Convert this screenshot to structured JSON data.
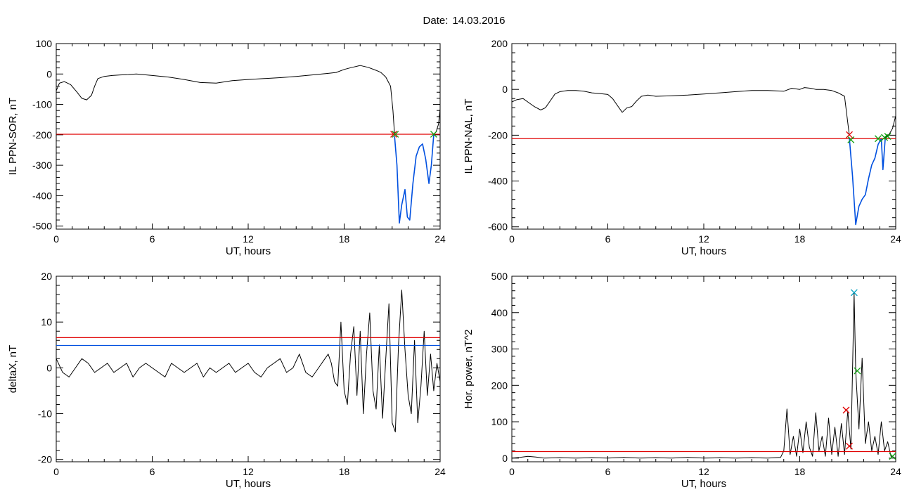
{
  "figure": {
    "date_label": "Date:",
    "date_value": "14.03.2016"
  },
  "colors": {
    "trace": "#000000",
    "red": "#e00000",
    "blue": "#0050e0",
    "green": "#10a010",
    "cyan": "#00a0c0"
  },
  "chart_data": [
    {
      "type": "line",
      "title": "",
      "xlabel": "UT, hours",
      "ylabel": "IL PPN-SOR, nT",
      "xlim": [
        0,
        24
      ],
      "ylim": [
        -510,
        100
      ],
      "xticks": [
        0,
        6,
        12,
        18,
        24
      ],
      "xtick_labels": [
        "0",
        "6",
        "12",
        "18",
        "24"
      ],
      "yticks": [
        100,
        0,
        -100,
        -200,
        -300,
        -400,
        -500
      ],
      "ytick_labels": [
        "100",
        "0",
        "-100",
        "-200",
        "-300",
        "-400",
        "-500"
      ],
      "grid": false,
      "series": [
        {
          "color": "#000000",
          "x": [
            0,
            0.2,
            0.5,
            0.9,
            1.3,
            1.6,
            1.9,
            2.2,
            2.4,
            2.6,
            3,
            3.5,
            4,
            4.5,
            5,
            6,
            7,
            8,
            9,
            10,
            11,
            12,
            13,
            14,
            15,
            16,
            17,
            17.5,
            18,
            18.5,
            19,
            19.5,
            20,
            20.3,
            20.6,
            20.9,
            21.05,
            21.15
          ],
          "y": [
            -55,
            -30,
            -25,
            -35,
            -60,
            -80,
            -85,
            -70,
            -40,
            -15,
            -8,
            -5,
            -3,
            -2,
            0,
            -5,
            -10,
            -18,
            -28,
            -30,
            -22,
            -18,
            -15,
            -12,
            -8,
            -3,
            2,
            5,
            15,
            22,
            28,
            22,
            12,
            5,
            -10,
            -40,
            -120,
            -200
          ]
        },
        {
          "color": "#0050e0",
          "x": [
            21.15,
            21.3,
            21.45,
            21.6,
            21.8,
            21.95,
            22.1,
            22.3,
            22.5,
            22.7,
            22.9,
            23.1,
            23.3,
            23.45,
            23.6
          ],
          "y": [
            -205,
            -300,
            -490,
            -430,
            -380,
            -470,
            -480,
            -360,
            -270,
            -240,
            -230,
            -280,
            -360,
            -300,
            -200
          ]
        },
        {
          "color": "#000000",
          "x": [
            23.6,
            23.75,
            23.9,
            24
          ],
          "y": [
            -200,
            -190,
            -165,
            -115
          ]
        }
      ],
      "thresholds": [
        {
          "color": "#e00000",
          "y": -198
        }
      ],
      "markers": [
        {
          "color": "#e00000",
          "x": 21.1,
          "y": -198
        },
        {
          "color": "#10a010",
          "x": 21.2,
          "y": -198
        },
        {
          "color": "#10a010",
          "x": 23.6,
          "y": -198
        }
      ]
    },
    {
      "type": "line",
      "title": "",
      "xlabel": "UT, hours",
      "ylabel": "IL PPN-NAL, nT",
      "xlim": [
        0,
        24
      ],
      "ylim": [
        -610,
        200
      ],
      "xticks": [
        0,
        6,
        12,
        18,
        24
      ],
      "xtick_labels": [
        "0",
        "6",
        "12",
        "18",
        "24"
      ],
      "yticks": [
        200,
        0,
        -200,
        -400,
        -600
      ],
      "ytick_labels": [
        "200",
        "0",
        "-200",
        "-400",
        "-600"
      ],
      "grid": false,
      "series": [
        {
          "color": "#000000",
          "x": [
            0,
            0.3,
            0.7,
            1.0,
            1.4,
            1.8,
            2.1,
            2.4,
            2.7,
            3.0,
            3.5,
            4.0,
            4.5,
            5.0,
            5.5,
            6.0,
            6.3,
            6.6,
            6.9,
            7.2,
            7.5,
            7.8,
            8.1,
            8.5,
            9,
            10,
            11,
            12,
            13,
            14,
            15,
            16,
            17,
            17.5,
            18,
            18.3,
            18.7,
            19.0,
            19.5,
            20.0,
            20.4,
            20.8,
            21.1
          ],
          "y": [
            -55,
            -45,
            -40,
            -55,
            -75,
            -90,
            -80,
            -50,
            -20,
            -10,
            -5,
            -5,
            -8,
            -15,
            -18,
            -22,
            -40,
            -70,
            -100,
            -80,
            -75,
            -50,
            -30,
            -25,
            -30,
            -28,
            -25,
            -20,
            -15,
            -10,
            -5,
            -5,
            -8,
            5,
            0,
            8,
            5,
            0,
            0,
            -5,
            -15,
            -30,
            -200
          ]
        },
        {
          "color": "#0050e0",
          "x": [
            21.1,
            21.3,
            21.5,
            21.7,
            21.9,
            22.1,
            22.3,
            22.5,
            22.7,
            22.9,
            23.1,
            23.2,
            23.35
          ],
          "y": [
            -210,
            -380,
            -590,
            -510,
            -480,
            -460,
            -390,
            -330,
            -300,
            -240,
            -215,
            -350,
            -210
          ]
        },
        {
          "color": "#000000",
          "x": [
            23.35,
            23.6,
            23.8,
            24
          ],
          "y": [
            -210,
            -195,
            -170,
            -115
          ]
        }
      ],
      "thresholds": [
        {
          "color": "#e00000",
          "y": -215
        }
      ],
      "markers": [
        {
          "color": "#e00000",
          "x": 21.1,
          "y": -198
        },
        {
          "color": "#10a010",
          "x": 21.2,
          "y": -220
        },
        {
          "color": "#10a010",
          "x": 22.9,
          "y": -215
        },
        {
          "color": "#10a010",
          "x": 23.3,
          "y": -210
        },
        {
          "color": "#10a010",
          "x": 23.5,
          "y": -205
        }
      ]
    },
    {
      "type": "line",
      "title": "",
      "xlabel": "UT, hours",
      "ylabel": "deltaX, nT",
      "xlim": [
        0,
        24
      ],
      "ylim": [
        -20.5,
        20
      ],
      "xticks": [
        0,
        6,
        12,
        18,
        24
      ],
      "xtick_labels": [
        "0",
        "6",
        "12",
        "18",
        "24"
      ],
      "yticks": [
        20,
        10,
        0,
        -10,
        -20
      ],
      "ytick_labels": [
        "20",
        "10",
        "0",
        "-10",
        "-20"
      ],
      "grid": false,
      "series": [
        {
          "color": "#000000",
          "x": [
            0,
            0.4,
            0.8,
            1.2,
            1.6,
            2.0,
            2.4,
            2.8,
            3.2,
            3.6,
            4.0,
            4.4,
            4.8,
            5.2,
            5.6,
            6.0,
            6.4,
            6.8,
            7.2,
            7.6,
            8.0,
            8.4,
            8.8,
            9.2,
            9.6,
            10.0,
            10.4,
            10.8,
            11.2,
            11.6,
            12.0,
            12.4,
            12.8,
            13.2,
            13.6,
            14.0,
            14.4,
            14.8,
            15.2,
            15.6,
            16.0,
            16.4,
            16.8,
            17.0,
            17.2,
            17.4,
            17.6,
            17.8,
            18.0,
            18.2,
            18.4,
            18.6,
            18.8,
            19.0,
            19.2,
            19.4,
            19.6,
            19.8,
            20.0,
            20.2,
            20.4,
            20.6,
            20.8,
            21.0,
            21.2,
            21.4,
            21.6,
            21.8,
            22.0,
            22.2,
            22.4,
            22.6,
            22.8,
            23.0,
            23.2,
            23.4,
            23.6,
            23.8,
            24.0
          ],
          "y": [
            2,
            -1,
            -2,
            0,
            2,
            1,
            -1,
            0,
            1,
            -1,
            0,
            1,
            -2,
            0,
            1,
            0,
            -1,
            -2,
            1,
            0,
            -1,
            0,
            1,
            -2,
            0,
            -1,
            0,
            1,
            -1,
            0,
            1,
            -1,
            -2,
            0,
            1,
            2,
            -1,
            0,
            3,
            -1,
            -2,
            0,
            2,
            3,
            1,
            -3,
            -4,
            10,
            -5,
            -8,
            3,
            9,
            -6,
            8,
            -10,
            3,
            12,
            -5,
            -9,
            5,
            -11,
            2,
            14,
            -12,
            -14,
            5,
            17,
            4,
            -6,
            -10,
            6,
            -12,
            -4,
            8,
            -6,
            3,
            -5,
            1,
            -3
          ]
        }
      ],
      "thresholds": [
        {
          "color": "#e00000",
          "y": 6.6
        },
        {
          "color": "#0050e0",
          "y": 4.9
        }
      ],
      "markers": []
    },
    {
      "type": "line",
      "title": "",
      "xlabel": "UT, hours",
      "ylabel": "Hor. power, nT^2",
      "xlim": [
        0,
        24
      ],
      "ylim": [
        -10,
        500
      ],
      "xticks": [
        0,
        6,
        12,
        18,
        24
      ],
      "xtick_labels": [
        "0",
        "6",
        "12",
        "18",
        "24"
      ],
      "yticks": [
        500,
        400,
        300,
        200,
        100,
        0
      ],
      "ytick_labels": [
        "500",
        "400",
        "300",
        "200",
        "100",
        "0"
      ],
      "grid": false,
      "series": [
        {
          "color": "#000000",
          "x": [
            0,
            0.5,
            1,
            1.5,
            2,
            3,
            4,
            5,
            6,
            7,
            8,
            9,
            10,
            11,
            12,
            13,
            14,
            15,
            16,
            16.8,
            17.0,
            17.2,
            17.4,
            17.6,
            17.8,
            18.0,
            18.2,
            18.4,
            18.6,
            18.8,
            19.0,
            19.2,
            19.4,
            19.6,
            19.8,
            20.0,
            20.2,
            20.4,
            20.6,
            20.8,
            21.0,
            21.2,
            21.4,
            21.5,
            21.7,
            21.9,
            22.1,
            22.3,
            22.5,
            22.7,
            22.9,
            23.1,
            23.3,
            23.5,
            23.7,
            24.0
          ],
          "y": [
            0,
            2,
            5,
            3,
            0,
            1,
            0,
            1,
            0,
            2,
            0,
            1,
            0,
            2,
            0,
            1,
            0,
            1,
            0,
            2,
            20,
            135,
            10,
            60,
            5,
            80,
            15,
            100,
            30,
            5,
            125,
            20,
            60,
            5,
            110,
            10,
            85,
            5,
            95,
            10,
            130,
            25,
            455,
            240,
            80,
            275,
            40,
            100,
            20,
            60,
            10,
            100,
            20,
            45,
            5,
            0
          ]
        }
      ],
      "thresholds": [
        {
          "color": "#e00000",
          "y": 18
        }
      ],
      "markers": [
        {
          "color": "#00a0c0",
          "x": 21.4,
          "y": 455
        },
        {
          "color": "#10a010",
          "x": 21.6,
          "y": 240
        },
        {
          "color": "#e00000",
          "x": 20.9,
          "y": 132
        },
        {
          "color": "#e00000",
          "x": 21.1,
          "y": 33
        },
        {
          "color": "#10a010",
          "x": 23.8,
          "y": 5
        }
      ]
    }
  ]
}
